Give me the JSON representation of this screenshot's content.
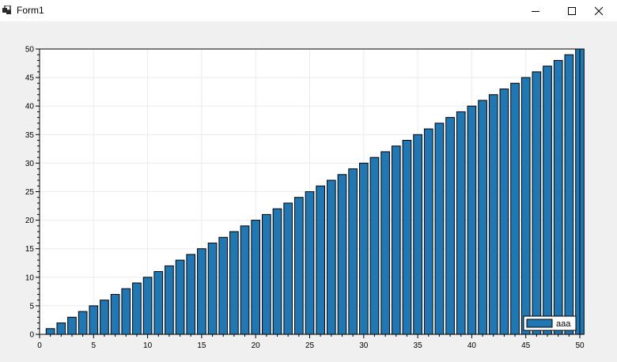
{
  "window": {
    "title": "Form1",
    "minimize_icon": "minimize-icon",
    "maximize_icon": "maximize-icon",
    "close_icon": "close-icon"
  },
  "colors": {
    "bar_fill": "#1f77b4",
    "bar_edge": "#000000",
    "plot_bg": "#ffffff",
    "grid": "#ebebeb",
    "window_bg": "#f0f0f0"
  },
  "chart_data": {
    "type": "bar",
    "title": "",
    "xlabel": "",
    "ylabel": "",
    "xlim": [
      0,
      50
    ],
    "ylim": [
      0,
      50
    ],
    "x_ticks": [
      "0",
      "5",
      "10",
      "15",
      "20",
      "25",
      "30",
      "35",
      "40",
      "45",
      "50"
    ],
    "y_ticks": [
      "0",
      "5",
      "10",
      "15",
      "20",
      "25",
      "30",
      "35",
      "40",
      "45",
      "50"
    ],
    "grid": true,
    "legend_position": "bottom-right",
    "series": [
      {
        "name": "aaa",
        "x": [
          1,
          2,
          3,
          4,
          5,
          6,
          7,
          8,
          9,
          10,
          11,
          12,
          13,
          14,
          15,
          16,
          17,
          18,
          19,
          20,
          21,
          22,
          23,
          24,
          25,
          26,
          27,
          28,
          29,
          30,
          31,
          32,
          33,
          34,
          35,
          36,
          37,
          38,
          39,
          40,
          41,
          42,
          43,
          44,
          45,
          46,
          47,
          48,
          49,
          50
        ],
        "values": [
          1,
          2,
          3,
          4,
          5,
          6,
          7,
          8,
          9,
          10,
          11,
          12,
          13,
          14,
          15,
          16,
          17,
          18,
          19,
          20,
          21,
          22,
          23,
          24,
          25,
          26,
          27,
          28,
          29,
          30,
          31,
          32,
          33,
          34,
          35,
          36,
          37,
          38,
          39,
          40,
          41,
          42,
          43,
          44,
          45,
          46,
          47,
          48,
          49,
          50
        ]
      }
    ]
  }
}
